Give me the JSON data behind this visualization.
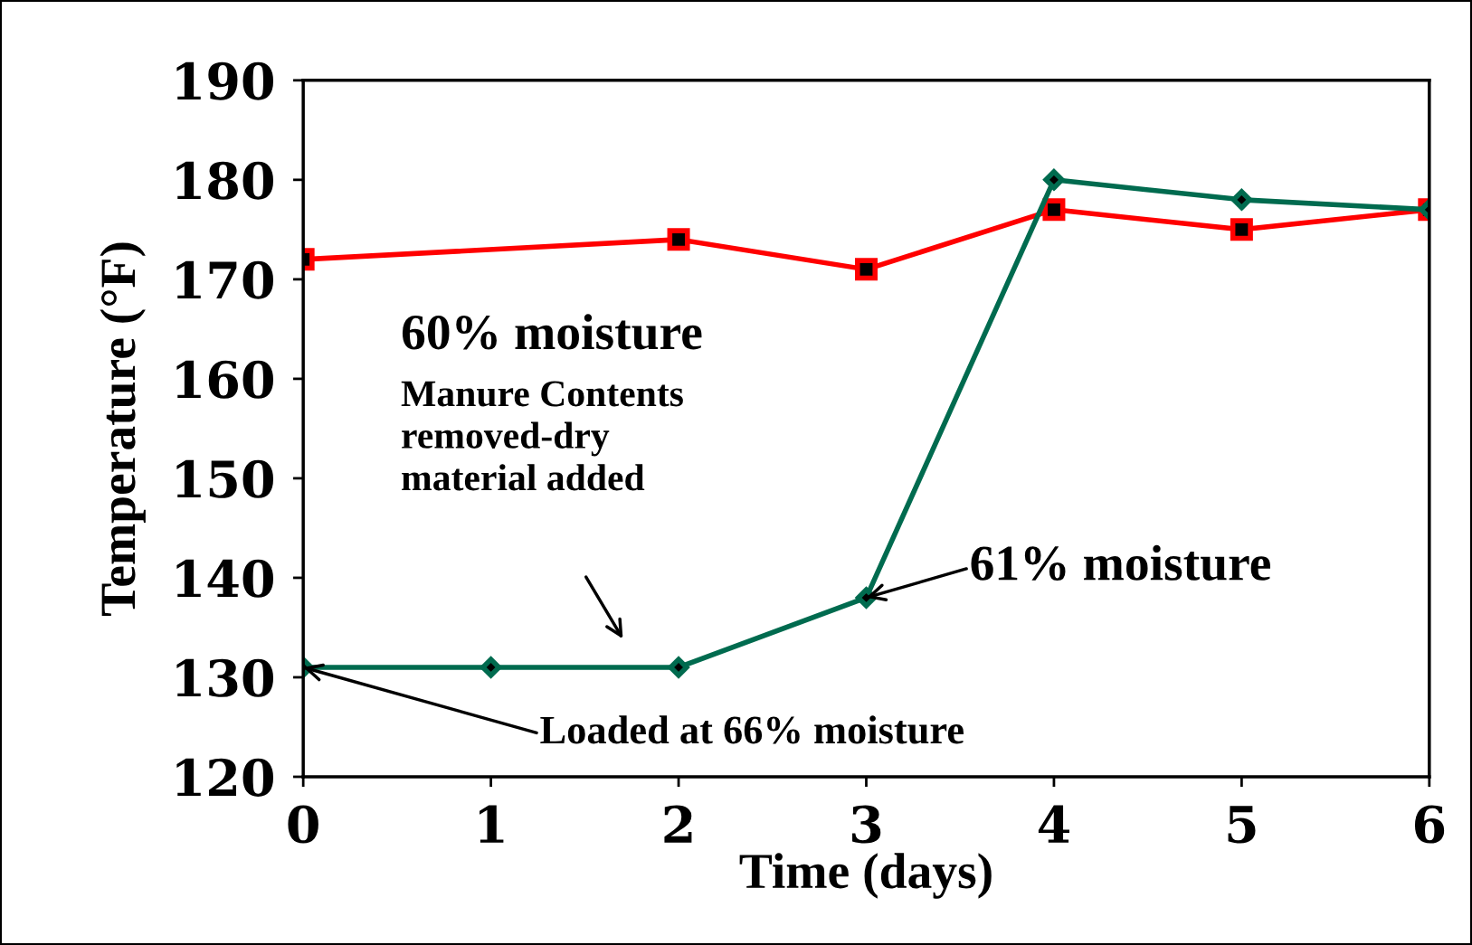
{
  "chart_data": {
    "type": "line",
    "xlabel": "Time (days)",
    "ylabel": "Temperature (°F)",
    "xlim": [
      0,
      6
    ],
    "xticks": [
      0,
      1,
      2,
      3,
      4,
      5,
      6
    ],
    "ylim": [
      120,
      190
    ],
    "yticks": [
      120,
      130,
      140,
      150,
      160,
      170,
      180,
      190
    ],
    "grid": false,
    "legend": false,
    "series": [
      {
        "name": "60% moisture",
        "color": "#ff0000",
        "marker": "square",
        "x": [
          0,
          2,
          3,
          4,
          5,
          6
        ],
        "values": [
          172,
          174,
          171,
          177,
          175,
          177
        ]
      },
      {
        "color": "#006b4f",
        "marker": "diamond",
        "x": [
          0,
          1,
          2,
          3,
          4,
          5,
          6
        ],
        "values": [
          131,
          131,
          131,
          138,
          180,
          178,
          177
        ]
      }
    ],
    "annotations": [
      "Manure Contents\nremoved-dry\nmaterial added",
      {
        "text": "61% moisture",
        "x": 3,
        "y": 138
      },
      {
        "text": "Loaded at 66% moisture",
        "x": 0,
        "y": 131
      }
    ]
  }
}
